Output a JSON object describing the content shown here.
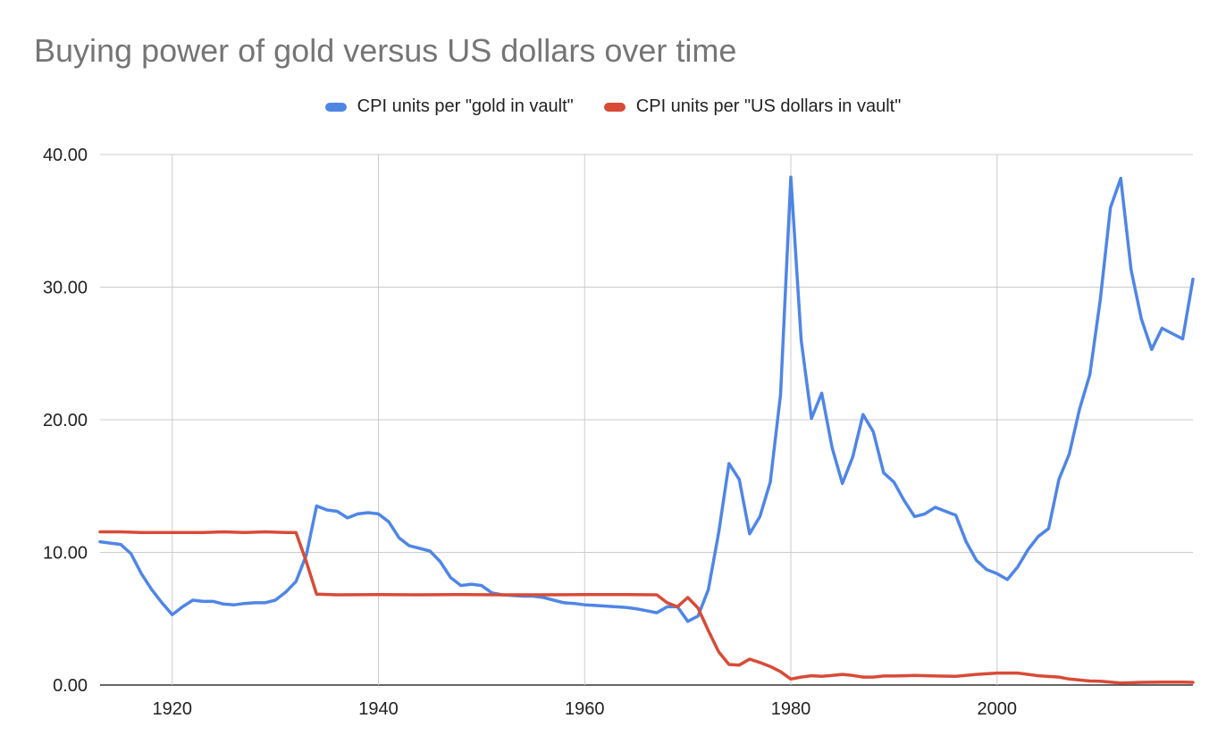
{
  "chart_data": {
    "type": "line",
    "title": "Buying power of gold versus US dollars over time",
    "xlabel": "",
    "ylabel": "",
    "xlim": [
      1913,
      2019
    ],
    "ylim": [
      0,
      40
    ],
    "x_ticks": [
      "1920",
      "1940",
      "1960",
      "1980",
      "2000"
    ],
    "x_tick_values": [
      1920,
      1940,
      1960,
      1980,
      2000
    ],
    "y_ticks": [
      "0.00",
      "10.00",
      "20.00",
      "30.00",
      "40.00"
    ],
    "y_tick_values": [
      0,
      10,
      20,
      30,
      40
    ],
    "grid": true,
    "legend_position": "top",
    "series": [
      {
        "name": "CPI units per \"gold in vault\"",
        "color": "#4f86e6",
        "points": [
          [
            1913,
            10.8
          ],
          [
            1914,
            10.7
          ],
          [
            1915,
            10.6
          ],
          [
            1916,
            9.9
          ],
          [
            1917,
            8.4
          ],
          [
            1918,
            7.2
          ],
          [
            1919,
            6.2
          ],
          [
            1920,
            5.3
          ],
          [
            1921,
            5.9
          ],
          [
            1922,
            6.4
          ],
          [
            1923,
            6.3
          ],
          [
            1924,
            6.3
          ],
          [
            1925,
            6.1
          ],
          [
            1926,
            6.05
          ],
          [
            1927,
            6.15
          ],
          [
            1928,
            6.2
          ],
          [
            1929,
            6.2
          ],
          [
            1930,
            6.4
          ],
          [
            1931,
            7.0
          ],
          [
            1932,
            7.8
          ],
          [
            1933,
            9.8
          ],
          [
            1934,
            13.5
          ],
          [
            1935,
            13.2
          ],
          [
            1936,
            13.1
          ],
          [
            1937,
            12.6
          ],
          [
            1938,
            12.9
          ],
          [
            1939,
            13.0
          ],
          [
            1940,
            12.9
          ],
          [
            1941,
            12.3
          ],
          [
            1942,
            11.1
          ],
          [
            1943,
            10.5
          ],
          [
            1944,
            10.3
          ],
          [
            1945,
            10.1
          ],
          [
            1946,
            9.3
          ],
          [
            1947,
            8.1
          ],
          [
            1948,
            7.5
          ],
          [
            1949,
            7.6
          ],
          [
            1950,
            7.5
          ],
          [
            1951,
            6.95
          ],
          [
            1952,
            6.8
          ],
          [
            1953,
            6.75
          ],
          [
            1954,
            6.7
          ],
          [
            1955,
            6.7
          ],
          [
            1956,
            6.6
          ],
          [
            1957,
            6.4
          ],
          [
            1958,
            6.2
          ],
          [
            1959,
            6.15
          ],
          [
            1960,
            6.05
          ],
          [
            1961,
            6.0
          ],
          [
            1962,
            5.95
          ],
          [
            1963,
            5.9
          ],
          [
            1964,
            5.85
          ],
          [
            1965,
            5.75
          ],
          [
            1966,
            5.6
          ],
          [
            1967,
            5.45
          ],
          [
            1968,
            5.9
          ],
          [
            1969,
            5.9
          ],
          [
            1970,
            4.8
          ],
          [
            1971,
            5.2
          ],
          [
            1972,
            7.2
          ],
          [
            1973,
            11.5
          ],
          [
            1974,
            16.7
          ],
          [
            1975,
            15.5
          ],
          [
            1976,
            11.4
          ],
          [
            1977,
            12.7
          ],
          [
            1978,
            15.3
          ],
          [
            1979,
            21.9
          ],
          [
            1980,
            38.3
          ],
          [
            1981,
            26.0
          ],
          [
            1982,
            20.1
          ],
          [
            1983,
            22.0
          ],
          [
            1984,
            17.9
          ],
          [
            1985,
            15.2
          ],
          [
            1986,
            17.2
          ],
          [
            1987,
            20.4
          ],
          [
            1988,
            19.1
          ],
          [
            1989,
            16.0
          ],
          [
            1990,
            15.3
          ],
          [
            1991,
            13.9
          ],
          [
            1992,
            12.7
          ],
          [
            1993,
            12.9
          ],
          [
            1994,
            13.4
          ],
          [
            1995,
            13.1
          ],
          [
            1996,
            12.8
          ],
          [
            1997,
            10.8
          ],
          [
            1998,
            9.4
          ],
          [
            1999,
            8.7
          ],
          [
            2000,
            8.4
          ],
          [
            2001,
            7.95
          ],
          [
            2002,
            8.9
          ],
          [
            2003,
            10.2
          ],
          [
            2004,
            11.2
          ],
          [
            2005,
            11.8
          ],
          [
            2006,
            15.5
          ],
          [
            2007,
            17.4
          ],
          [
            2008,
            20.8
          ],
          [
            2009,
            23.4
          ],
          [
            2010,
            29.0
          ],
          [
            2011,
            36.0
          ],
          [
            2012,
            38.2
          ],
          [
            2013,
            31.3
          ],
          [
            2014,
            27.6
          ],
          [
            2015,
            25.3
          ],
          [
            2016,
            26.9
          ],
          [
            2017,
            26.5
          ],
          [
            2018,
            26.1
          ],
          [
            2019,
            30.6
          ]
        ]
      },
      {
        "name": "CPI units per \"US dollars in vault\"",
        "color": "#d84b37",
        "points": [
          [
            1913,
            11.55
          ],
          [
            1915,
            11.55
          ],
          [
            1917,
            11.5
          ],
          [
            1919,
            11.5
          ],
          [
            1921,
            11.5
          ],
          [
            1923,
            11.5
          ],
          [
            1925,
            11.55
          ],
          [
            1927,
            11.5
          ],
          [
            1929,
            11.55
          ],
          [
            1931,
            11.5
          ],
          [
            1932,
            11.5
          ],
          [
            1933,
            9.3
          ],
          [
            1934,
            6.85
          ],
          [
            1936,
            6.8
          ],
          [
            1940,
            6.82
          ],
          [
            1944,
            6.8
          ],
          [
            1948,
            6.82
          ],
          [
            1952,
            6.8
          ],
          [
            1956,
            6.8
          ],
          [
            1960,
            6.82
          ],
          [
            1964,
            6.82
          ],
          [
            1967,
            6.8
          ],
          [
            1968,
            6.2
          ],
          [
            1969,
            5.9
          ],
          [
            1970,
            6.6
          ],
          [
            1971,
            5.8
          ],
          [
            1972,
            4.1
          ],
          [
            1973,
            2.5
          ],
          [
            1974,
            1.55
          ],
          [
            1975,
            1.5
          ],
          [
            1976,
            1.95
          ],
          [
            1977,
            1.7
          ],
          [
            1978,
            1.4
          ],
          [
            1979,
            1.0
          ],
          [
            1980,
            0.45
          ],
          [
            1981,
            0.6
          ],
          [
            1982,
            0.7
          ],
          [
            1983,
            0.65
          ],
          [
            1984,
            0.72
          ],
          [
            1985,
            0.8
          ],
          [
            1986,
            0.72
          ],
          [
            1987,
            0.6
          ],
          [
            1988,
            0.6
          ],
          [
            1989,
            0.68
          ],
          [
            1990,
            0.68
          ],
          [
            1992,
            0.72
          ],
          [
            1994,
            0.68
          ],
          [
            1996,
            0.65
          ],
          [
            1998,
            0.8
          ],
          [
            2000,
            0.9
          ],
          [
            2002,
            0.9
          ],
          [
            2004,
            0.7
          ],
          [
            2006,
            0.6
          ],
          [
            2007,
            0.45
          ],
          [
            2009,
            0.3
          ],
          [
            2010,
            0.28
          ],
          [
            2012,
            0.15
          ],
          [
            2014,
            0.2
          ],
          [
            2016,
            0.22
          ],
          [
            2018,
            0.22
          ],
          [
            2019,
            0.2
          ]
        ]
      }
    ]
  }
}
